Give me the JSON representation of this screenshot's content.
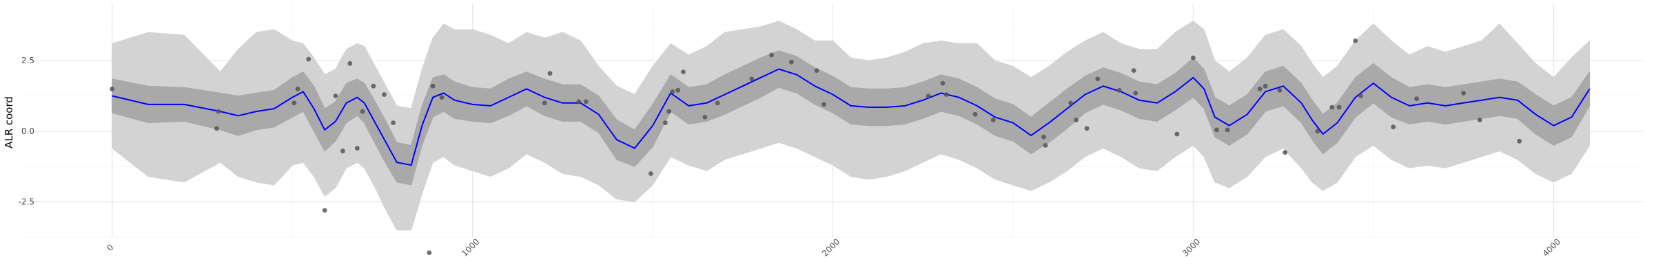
{
  "chart_data": {
    "type": "line",
    "title": "",
    "xlabel": "",
    "ylabel": "ALR coord",
    "xlim": [
      -250,
      4250
    ],
    "ylim": [
      -3.75,
      4.5
    ],
    "x_ticks": [
      0,
      1000,
      2000,
      3000,
      4000
    ],
    "x_tick_labels": [
      "0",
      "1000",
      "2000",
      "3000",
      "4000"
    ],
    "y_ticks": [
      -2.5,
      0.0,
      2.5
    ],
    "y_tick_labels": [
      "-2.5",
      "0.0",
      "2.5"
    ],
    "grid": true,
    "colors": {
      "mean": "#0000ff",
      "inner_band": "#a9a9a9",
      "outer_band": "#d3d3d3",
      "points": "#555555"
    },
    "mean_line": {
      "x": [
        0,
        100,
        200,
        300,
        350,
        400,
        450,
        500,
        530,
        560,
        590,
        620,
        650,
        680,
        700,
        730,
        760,
        790,
        830,
        860,
        890,
        920,
        950,
        1000,
        1050,
        1100,
        1150,
        1200,
        1250,
        1300,
        1350,
        1400,
        1450,
        1500,
        1550,
        1600,
        1650,
        1700,
        1750,
        1800,
        1850,
        1900,
        1950,
        2000,
        2050,
        2100,
        2150,
        2200,
        2250,
        2300,
        2350,
        2400,
        2450,
        2500,
        2550,
        2600,
        2650,
        2700,
        2750,
        2800,
        2850,
        2900,
        2950,
        3000,
        3030,
        3060,
        3100,
        3150,
        3200,
        3250,
        3300,
        3330,
        3360,
        3400,
        3450,
        3500,
        3550,
        3600,
        3650,
        3700,
        3750,
        3800,
        3850,
        3900,
        3950,
        4000,
        4050,
        4100
      ],
      "y": [
        1.25,
        0.95,
        0.95,
        0.7,
        0.55,
        0.7,
        0.8,
        1.2,
        1.4,
        0.8,
        0.05,
        0.35,
        1.0,
        1.2,
        1.0,
        0.3,
        -0.4,
        -1.1,
        -1.2,
        0.2,
        1.2,
        1.35,
        1.1,
        0.95,
        0.9,
        1.2,
        1.5,
        1.2,
        1.0,
        1.0,
        0.6,
        -0.3,
        -0.6,
        0.2,
        1.35,
        0.9,
        1.0,
        1.3,
        1.6,
        1.9,
        2.2,
        2.0,
        1.6,
        1.3,
        0.9,
        0.85,
        0.85,
        0.9,
        1.1,
        1.35,
        1.2,
        0.9,
        0.5,
        0.3,
        -0.15,
        0.3,
        0.8,
        1.3,
        1.6,
        1.4,
        1.1,
        1.0,
        1.4,
        1.9,
        1.5,
        0.5,
        0.2,
        0.6,
        1.4,
        1.6,
        1.0,
        0.4,
        -0.1,
        0.3,
        1.2,
        1.7,
        1.2,
        0.9,
        1.0,
        0.9,
        1.0,
        1.1,
        1.2,
        1.1,
        0.6,
        0.2,
        0.5,
        1.5
      ]
    },
    "inner_band": {
      "x": [
        0,
        100,
        200,
        300,
        350,
        400,
        450,
        500,
        530,
        560,
        590,
        620,
        650,
        680,
        700,
        730,
        760,
        790,
        830,
        860,
        890,
        920,
        950,
        1000,
        1050,
        1100,
        1150,
        1200,
        1250,
        1300,
        1350,
        1400,
        1450,
        1500,
        1550,
        1600,
        1650,
        1700,
        1750,
        1800,
        1850,
        1900,
        1950,
        2000,
        2050,
        2100,
        2150,
        2200,
        2250,
        2300,
        2350,
        2400,
        2450,
        2500,
        2550,
        2600,
        2650,
        2700,
        2750,
        2800,
        2850,
        2900,
        2950,
        3000,
        3030,
        3060,
        3100,
        3150,
        3200,
        3250,
        3300,
        3330,
        3360,
        3400,
        3450,
        3500,
        3550,
        3600,
        3650,
        3700,
        3750,
        3800,
        3850,
        3900,
        3950,
        4000,
        4050,
        4100
      ],
      "upper": [
        1.85,
        1.6,
        1.55,
        1.35,
        1.25,
        1.35,
        1.45,
        1.9,
        2.1,
        1.6,
        0.8,
        1.05,
        1.7,
        1.85,
        1.7,
        1.05,
        0.35,
        -0.4,
        -0.5,
        0.9,
        1.9,
        2.0,
        1.75,
        1.55,
        1.5,
        1.85,
        2.1,
        1.85,
        1.65,
        1.65,
        1.25,
        0.4,
        0.05,
        0.95,
        2.0,
        1.55,
        1.65,
        2.0,
        2.3,
        2.6,
        2.85,
        2.65,
        2.25,
        1.95,
        1.55,
        1.5,
        1.5,
        1.55,
        1.75,
        2.0,
        1.85,
        1.55,
        1.15,
        0.95,
        0.5,
        1.0,
        1.5,
        1.95,
        2.25,
        2.05,
        1.75,
        1.65,
        2.05,
        2.6,
        2.2,
        1.2,
        0.9,
        1.3,
        2.1,
        2.3,
        1.7,
        1.1,
        0.6,
        1.0,
        1.9,
        2.4,
        1.9,
        1.55,
        1.65,
        1.55,
        1.65,
        1.75,
        1.85,
        1.75,
        1.3,
        0.9,
        1.2,
        2.1
      ],
      "lower": [
        0.65,
        0.3,
        0.35,
        0.05,
        -0.15,
        0.05,
        0.15,
        0.5,
        0.7,
        0.0,
        -0.7,
        -0.35,
        0.3,
        0.55,
        0.3,
        -0.45,
        -1.15,
        -1.8,
        -1.9,
        -0.5,
        0.5,
        0.7,
        0.45,
        0.35,
        0.3,
        0.55,
        0.9,
        0.55,
        0.35,
        0.35,
        -0.05,
        -1.0,
        -1.25,
        -0.55,
        0.7,
        0.25,
        0.35,
        0.6,
        0.9,
        1.2,
        1.55,
        1.35,
        0.95,
        0.65,
        0.25,
        0.2,
        0.2,
        0.25,
        0.45,
        0.7,
        0.55,
        0.25,
        -0.15,
        -0.35,
        -0.8,
        -0.4,
        0.1,
        0.65,
        0.95,
        0.75,
        0.45,
        0.35,
        0.75,
        1.2,
        0.8,
        -0.2,
        -0.5,
        -0.1,
        0.7,
        0.9,
        0.3,
        -0.3,
        -0.8,
        -0.4,
        0.5,
        1.0,
        0.5,
        0.25,
        0.35,
        0.25,
        0.35,
        0.45,
        0.55,
        0.45,
        -0.1,
        -0.5,
        -0.2,
        0.9
      ]
    },
    "outer_band": {
      "x": [
        0,
        100,
        200,
        300,
        350,
        400,
        450,
        500,
        530,
        560,
        590,
        620,
        650,
        680,
        700,
        730,
        760,
        790,
        830,
        860,
        890,
        920,
        950,
        1000,
        1050,
        1100,
        1150,
        1200,
        1250,
        1300,
        1350,
        1400,
        1450,
        1500,
        1550,
        1600,
        1650,
        1700,
        1750,
        1800,
        1850,
        1900,
        1950,
        2000,
        2050,
        2100,
        2150,
        2200,
        2250,
        2300,
        2350,
        2400,
        2450,
        2500,
        2550,
        2600,
        2650,
        2700,
        2750,
        2800,
        2850,
        2900,
        2950,
        3000,
        3030,
        3060,
        3100,
        3150,
        3200,
        3250,
        3300,
        3330,
        3360,
        3400,
        3450,
        3500,
        3550,
        3600,
        3650,
        3700,
        3750,
        3800,
        3850,
        3900,
        3950,
        4000,
        4050,
        4100
      ],
      "upper": [
        3.1,
        3.5,
        3.4,
        2.1,
        2.9,
        3.5,
        3.6,
        3.2,
        3.1,
        2.6,
        2.0,
        2.2,
        2.9,
        3.1,
        3.0,
        2.3,
        1.6,
        0.9,
        0.8,
        2.2,
        3.3,
        3.8,
        3.6,
        3.6,
        3.4,
        3.1,
        3.5,
        3.3,
        3.5,
        3.2,
        2.3,
        1.6,
        1.3,
        2.3,
        3.1,
        2.7,
        3.0,
        3.5,
        3.6,
        3.7,
        3.9,
        3.6,
        3.2,
        3.2,
        2.6,
        2.5,
        2.6,
        2.8,
        3.1,
        3.2,
        3.1,
        3.1,
        2.5,
        2.3,
        1.9,
        2.3,
        2.8,
        3.2,
        3.5,
        3.1,
        2.9,
        2.9,
        3.5,
        3.9,
        3.6,
        2.5,
        2.1,
        2.6,
        3.4,
        3.6,
        3.0,
        2.4,
        1.9,
        2.3,
        3.2,
        3.8,
        3.2,
        2.7,
        3.0,
        2.8,
        3.0,
        3.2,
        3.8,
        3.1,
        2.4,
        1.9,
        2.6,
        3.2
      ],
      "lower": [
        -0.6,
        -1.6,
        -1.8,
        -1.1,
        -1.6,
        -1.8,
        -1.9,
        -1.2,
        -1.1,
        -1.6,
        -2.3,
        -2.0,
        -1.3,
        -1.1,
        -1.3,
        -2.0,
        -2.8,
        -3.5,
        -3.5,
        -2.2,
        -1.1,
        -0.9,
        -1.2,
        -1.4,
        -1.6,
        -1.3,
        -0.8,
        -1.1,
        -1.5,
        -1.6,
        -1.9,
        -2.4,
        -2.5,
        -1.9,
        -0.9,
        -1.2,
        -1.4,
        -1.0,
        -0.8,
        -0.6,
        -0.4,
        -0.6,
        -0.9,
        -1.2,
        -1.6,
        -1.7,
        -1.6,
        -1.4,
        -1.1,
        -0.8,
        -1.0,
        -1.3,
        -1.7,
        -1.9,
        -2.1,
        -1.8,
        -1.4,
        -0.9,
        -0.6,
        -0.9,
        -1.3,
        -1.4,
        -0.9,
        -0.5,
        -0.9,
        -1.8,
        -2.0,
        -1.6,
        -0.9,
        -0.6,
        -1.3,
        -1.8,
        -2.1,
        -1.8,
        -0.9,
        -0.5,
        -1.0,
        -1.3,
        -1.2,
        -1.3,
        -1.1,
        -0.9,
        -0.7,
        -1.0,
        -1.5,
        -1.8,
        -1.5,
        -0.5
      ]
    },
    "points": {
      "x": [
        0,
        290,
        295,
        505,
        515,
        545,
        590,
        620,
        640,
        660,
        680,
        695,
        725,
        755,
        780,
        880,
        890,
        915,
        1200,
        1215,
        1295,
        1315,
        1495,
        1535,
        1545,
        1555,
        1570,
        1585,
        1645,
        1680,
        1775,
        1830,
        1885,
        1955,
        1975,
        2265,
        2305,
        2315,
        2395,
        2445,
        2585,
        2590,
        2660,
        2675,
        2705,
        2735,
        2795,
        2835,
        2840,
        2955,
        3000,
        3065,
        3095,
        3185,
        3200,
        3240,
        3255,
        3345,
        3385,
        3405,
        3450,
        3465,
        3555,
        3620,
        3750,
        3795,
        3905
      ],
      "y": [
        1.5,
        0.1,
        0.7,
        1.0,
        1.5,
        2.55,
        -2.8,
        1.25,
        -0.7,
        2.4,
        -0.6,
        0.7,
        1.6,
        1.3,
        0.3,
        -4.3,
        1.6,
        1.2,
        1.0,
        2.05,
        1.05,
        1.05,
        -1.5,
        0.3,
        0.7,
        1.4,
        1.45,
        2.1,
        0.5,
        1.0,
        1.85,
        2.7,
        2.45,
        2.15,
        0.95,
        1.25,
        1.7,
        1.3,
        0.6,
        0.4,
        -0.2,
        -0.5,
        1.0,
        0.4,
        0.1,
        1.85,
        1.45,
        2.15,
        1.35,
        -0.1,
        2.6,
        0.05,
        0.05,
        1.5,
        1.6,
        1.45,
        -0.75,
        0.0,
        0.85,
        0.85,
        3.2,
        1.25,
        0.15,
        1.15,
        1.35,
        0.4,
        -0.35
      ]
    }
  }
}
